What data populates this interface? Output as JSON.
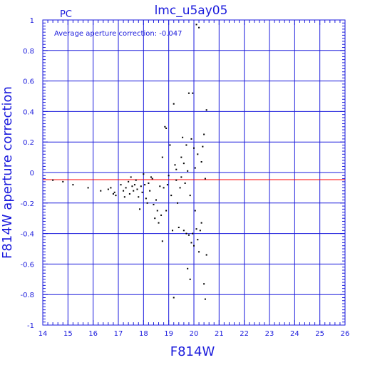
{
  "chart_data": {
    "type": "scatter",
    "title": "lmc_u5ay05",
    "corner_label": "PC",
    "annotation": "Average aperture correction: -0.047",
    "xlabel": "F814W",
    "ylabel": "F814W aperture correction",
    "xlim": [
      14,
      26
    ],
    "ylim": [
      -1,
      1
    ],
    "x_ticks": [
      "14",
      "15",
      "16",
      "17",
      "18",
      "19",
      "20",
      "21",
      "22",
      "23",
      "24",
      "25",
      "26"
    ],
    "y_ticks": [
      "-1",
      "-0.8",
      "-0.6",
      "-0.4",
      "-0.2",
      "0",
      "0.2",
      "0.4",
      "0.6",
      "0.8",
      "1"
    ],
    "grid": true,
    "reference_line": {
      "y": -0.047,
      "color": "#ff0000"
    },
    "colors": {
      "axes": "#1a1adc",
      "points": "#000000"
    },
    "series": [
      {
        "points": [
          [
            14.4,
            -0.05
          ],
          [
            14.8,
            -0.06
          ],
          [
            15.2,
            -0.08
          ],
          [
            15.8,
            -0.1
          ],
          [
            16.3,
            -0.12
          ],
          [
            16.6,
            -0.11
          ],
          [
            16.7,
            -0.1
          ],
          [
            16.8,
            -0.14
          ],
          [
            16.9,
            -0.15
          ],
          [
            16.85,
            -0.13
          ],
          [
            17.1,
            -0.08
          ],
          [
            17.2,
            -0.12
          ],
          [
            17.25,
            -0.16
          ],
          [
            17.3,
            -0.1
          ],
          [
            17.4,
            -0.06
          ],
          [
            17.45,
            -0.14
          ],
          [
            17.5,
            -0.03
          ],
          [
            17.55,
            -0.09
          ],
          [
            17.6,
            -0.12
          ],
          [
            17.65,
            -0.08
          ],
          [
            17.7,
            -0.05
          ],
          [
            17.75,
            -0.11
          ],
          [
            17.8,
            -0.16
          ],
          [
            17.85,
            -0.24
          ],
          [
            17.9,
            -0.09
          ],
          [
            17.95,
            -0.13
          ],
          [
            18.0,
            -0.01
          ],
          [
            18.05,
            -0.08
          ],
          [
            18.1,
            -0.17
          ],
          [
            18.15,
            -0.2
          ],
          [
            18.2,
            -0.07
          ],
          [
            18.25,
            -0.12
          ],
          [
            18.3,
            -0.03
          ],
          [
            18.35,
            -0.04
          ],
          [
            18.4,
            -0.21
          ],
          [
            18.45,
            -0.3
          ],
          [
            18.5,
            -0.18
          ],
          [
            18.55,
            -0.25
          ],
          [
            18.6,
            -0.33
          ],
          [
            18.65,
            -0.09
          ],
          [
            18.7,
            -0.28
          ],
          [
            18.75,
            0.1
          ],
          [
            18.75,
            -0.45
          ],
          [
            18.8,
            -0.1
          ],
          [
            18.85,
            0.3
          ],
          [
            18.9,
            0.29
          ],
          [
            18.9,
            -0.25
          ],
          [
            18.95,
            -0.08
          ],
          [
            19.0,
            -0.02
          ],
          [
            19.05,
            0.18
          ],
          [
            19.1,
            -0.15
          ],
          [
            19.15,
            -0.38
          ],
          [
            19.2,
            0.45
          ],
          [
            19.2,
            -0.82
          ],
          [
            19.25,
            0.05
          ],
          [
            19.3,
            -0.05
          ],
          [
            19.3,
            0.02
          ],
          [
            19.35,
            -0.2
          ],
          [
            19.4,
            -0.36
          ],
          [
            19.45,
            -0.1
          ],
          [
            19.5,
            0.1
          ],
          [
            19.5,
            -0.03
          ],
          [
            19.55,
            0.23
          ],
          [
            19.6,
            -0.38
          ],
          [
            19.6,
            0.06
          ],
          [
            19.65,
            -0.07
          ],
          [
            19.7,
            0.18
          ],
          [
            19.7,
            -0.4
          ],
          [
            19.75,
            -0.63
          ],
          [
            19.75,
            0.01
          ],
          [
            19.8,
            0.52
          ],
          [
            19.8,
            -0.41
          ],
          [
            19.85,
            -0.7
          ],
          [
            19.85,
            -0.15
          ],
          [
            19.9,
            0.22
          ],
          [
            19.9,
            -0.46
          ],
          [
            19.95,
            0.52
          ],
          [
            19.95,
            -0.4
          ],
          [
            20.0,
            0.16
          ],
          [
            20.0,
            -0.48
          ],
          [
            20.05,
            0.03
          ],
          [
            20.05,
            -0.25
          ],
          [
            20.1,
            0.97
          ],
          [
            20.1,
            -0.37
          ],
          [
            20.15,
            0.12
          ],
          [
            20.15,
            -0.44
          ],
          [
            20.2,
            0.95
          ],
          [
            20.2,
            -0.52
          ],
          [
            20.25,
            -0.38
          ],
          [
            20.3,
            -0.33
          ],
          [
            20.3,
            0.07
          ],
          [
            20.35,
            0.17
          ],
          [
            20.4,
            0.25
          ],
          [
            20.4,
            -0.73
          ],
          [
            20.45,
            -0.04
          ],
          [
            20.45,
            -0.83
          ],
          [
            20.5,
            0.41
          ],
          [
            20.5,
            -0.54
          ]
        ]
      }
    ]
  }
}
